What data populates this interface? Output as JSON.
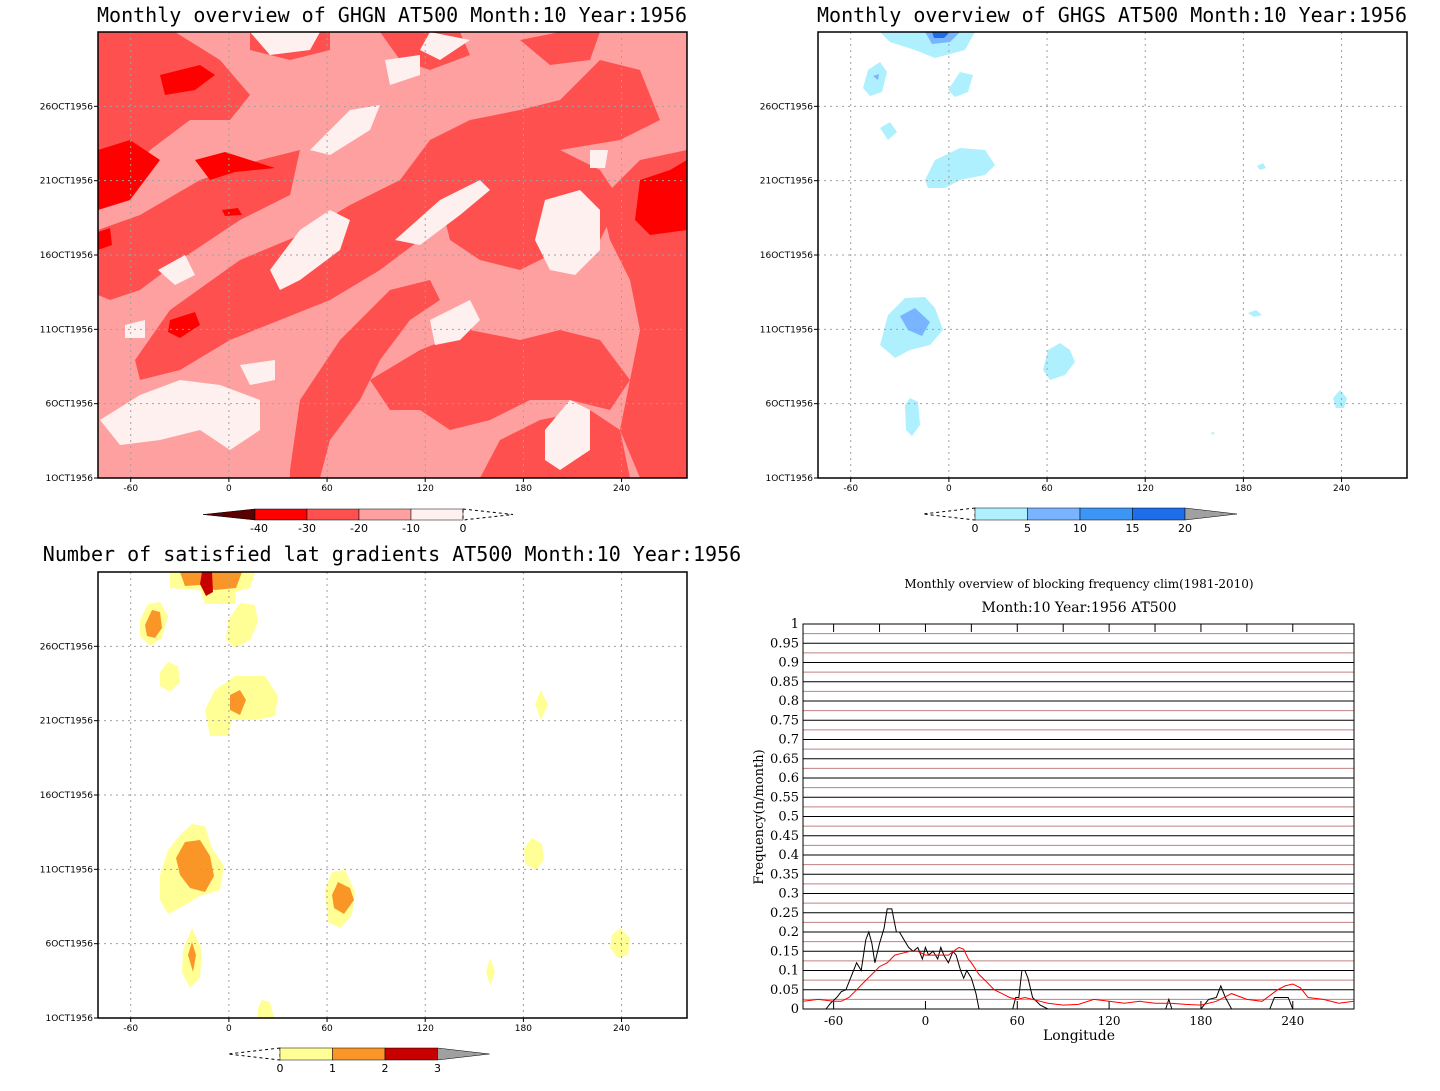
{
  "chart_data": [
    {
      "type": "heatmap",
      "title": "Monthly overview of GHGN AT500 Month:10 Year:1956",
      "xticks": [
        "-60",
        "0",
        "60",
        "120",
        "180",
        "240"
      ],
      "xlim": [
        -80,
        280
      ],
      "yticks": [
        "1OCT1956",
        "6OCT1956",
        "11OCT1956",
        "16OCT1956",
        "21OCT1956",
        "26OCT1956"
      ],
      "ylim": [
        1,
        31
      ],
      "colorbar": {
        "levels": [
          "-40",
          "-30",
          "-20",
          "-10",
          "0"
        ],
        "colors": [
          "#5a0000",
          "#ff0000",
          "#ff5050",
          "#ffa0a0",
          "#fff0f0"
        ],
        "extend": "both"
      }
    },
    {
      "type": "heatmap",
      "title": "Monthly overview of GHGS AT500 Month:10 Year:1956",
      "xticks": [
        "-60",
        "0",
        "60",
        "120",
        "180",
        "240"
      ],
      "xlim": [
        -80,
        280
      ],
      "yticks": [
        "1OCT1956",
        "6OCT1956",
        "11OCT1956",
        "16OCT1956",
        "21OCT1956",
        "26OCT1956"
      ],
      "ylim": [
        1,
        31
      ],
      "colorbar": {
        "levels": [
          "0",
          "5",
          "10",
          "15",
          "20"
        ],
        "colors": [
          "#aff0ff",
          "#78b4ff",
          "#3c96f5",
          "#1e6eeb"
        ],
        "extend": "both"
      }
    },
    {
      "type": "heatmap",
      "title": "Number of satisfied lat gradients AT500 Month:10 Year:1956",
      "xticks": [
        "-60",
        "0",
        "60",
        "120",
        "180",
        "240"
      ],
      "xlim": [
        -80,
        280
      ],
      "yticks": [
        "1OCT1956",
        "6OCT1956",
        "11OCT1956",
        "16OCT1956",
        "21OCT1956",
        "26OCT1956"
      ],
      "ylim": [
        1,
        31
      ],
      "colorbar": {
        "levels": [
          "0",
          "1",
          "2",
          "3"
        ],
        "colors": [
          "#ffff96",
          "#fa9628",
          "#c80000"
        ],
        "extend": "both"
      }
    },
    {
      "type": "line",
      "title": "Monthly overview of blocking frequency clim(1981-2010)",
      "subtitle": "Month:10 Year:1956  AT500",
      "xlabel": "Longitude",
      "ylabel": "Frequency(n/month)",
      "xlim": [
        -80,
        280
      ],
      "ylim": [
        0,
        1
      ],
      "xticks": [
        "-60",
        "0",
        "60",
        "120",
        "180",
        "240"
      ],
      "yticks": [
        "0",
        "0.05",
        "0.1",
        "0.15",
        "0.2",
        "0.25",
        "0.3",
        "0.35",
        "0.4",
        "0.45",
        "0.5",
        "0.55",
        "0.6",
        "0.65",
        "0.7",
        "0.75",
        "0.8",
        "0.85",
        "0.9",
        "0.95",
        "1"
      ],
      "series": [
        {
          "color": "#000000",
          "x": [
            -80,
            -65,
            -62,
            -58,
            -55,
            -52,
            -48,
            -45,
            -42,
            -39,
            -37,
            -35,
            -33,
            -30,
            -27,
            -25,
            -22,
            -19,
            -17,
            -14,
            -11,
            -8,
            -5,
            -2,
            0,
            2,
            5,
            8,
            10,
            12,
            15,
            18,
            20,
            23,
            25,
            27,
            30,
            33,
            35,
            40,
            50,
            57,
            59,
            61,
            63,
            65,
            67,
            70,
            75,
            80,
            150,
            157,
            159,
            161,
            163,
            165,
            180,
            185,
            190,
            193,
            196,
            200,
            210,
            225,
            228,
            230,
            235,
            237,
            240,
            280
          ],
          "y": [
            0,
            0,
            0.015,
            0.03,
            0.045,
            0.05,
            0.09,
            0.12,
            0.1,
            0.18,
            0.2,
            0.17,
            0.12,
            0.17,
            0.21,
            0.26,
            0.26,
            0.2,
            0.2,
            0.18,
            0.16,
            0.15,
            0.16,
            0.13,
            0.16,
            0.14,
            0.15,
            0.13,
            0.16,
            0.14,
            0.12,
            0.15,
            0.14,
            0.1,
            0.08,
            0.1,
            0.08,
            0.04,
            0,
            0,
            0,
            0,
            0.03,
            0.03,
            0.1,
            0.1,
            0.08,
            0.03,
            0.01,
            0,
            0,
            0,
            0.025,
            0,
            0,
            0,
            0,
            0.025,
            0.03,
            0.06,
            0.03,
            0,
            0,
            0,
            0.03,
            0.03,
            0.03,
            0.03,
            0,
            0
          ]
        },
        {
          "color": "#ff0000",
          "x": [
            -80,
            -70,
            -60,
            -55,
            -50,
            -45,
            -40,
            -35,
            -30,
            -25,
            -20,
            -15,
            -10,
            -5,
            0,
            5,
            10,
            15,
            20,
            22,
            25,
            28,
            30,
            35,
            40,
            45,
            50,
            55,
            60,
            65,
            70,
            75,
            80,
            90,
            100,
            110,
            120,
            130,
            140,
            150,
            160,
            170,
            180,
            190,
            200,
            210,
            220,
            230,
            235,
            240,
            245,
            250,
            260,
            270,
            280
          ],
          "y": [
            0.02,
            0.025,
            0.02,
            0.02,
            0.03,
            0.05,
            0.07,
            0.09,
            0.11,
            0.12,
            0.14,
            0.145,
            0.15,
            0.15,
            0.14,
            0.14,
            0.14,
            0.14,
            0.155,
            0.16,
            0.155,
            0.13,
            0.12,
            0.09,
            0.07,
            0.05,
            0.04,
            0.03,
            0.025,
            0.03,
            0.025,
            0.02,
            0.015,
            0.01,
            0.012,
            0.025,
            0.02,
            0.015,
            0.02,
            0.015,
            0.015,
            0.012,
            0.01,
            0.02,
            0.04,
            0.025,
            0.02,
            0.05,
            0.06,
            0.065,
            0.055,
            0.03,
            0.025,
            0.015,
            0.02
          ]
        }
      ]
    }
  ]
}
